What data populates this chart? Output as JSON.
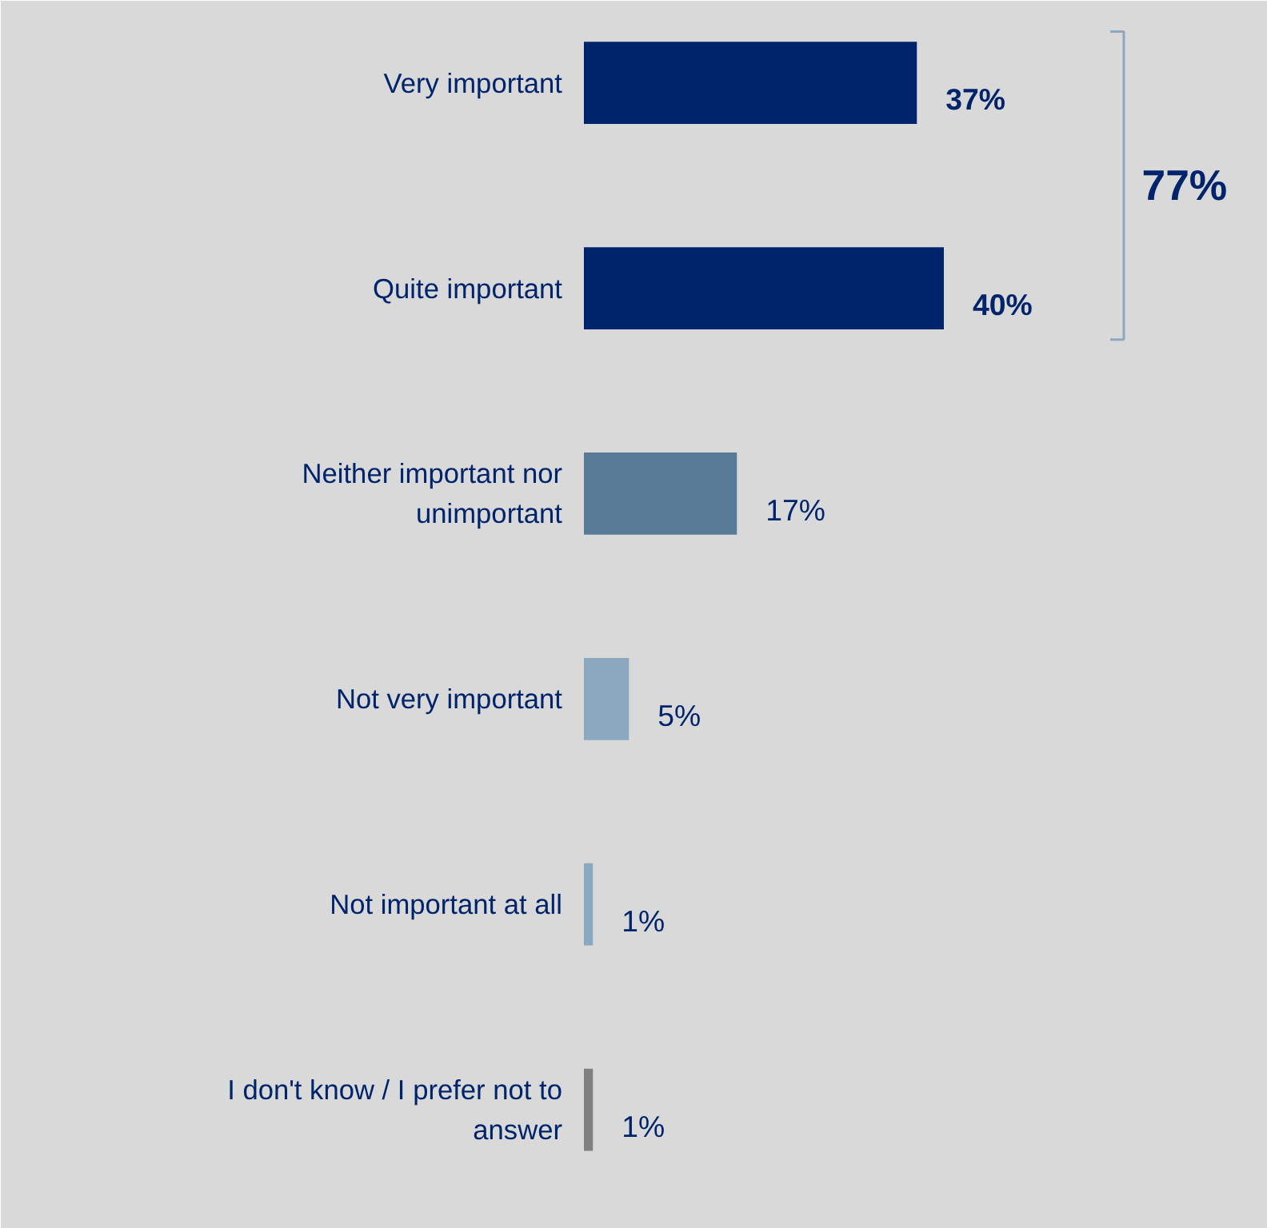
{
  "chart_data": {
    "type": "bar",
    "orientation": "horizontal",
    "categories": [
      "Very important",
      "Quite important",
      "Neither important nor unimportant",
      "Not very important",
      "Not important at all",
      "I don't know / I prefer not to answer"
    ],
    "values": [
      37,
      40,
      17,
      5,
      1,
      1
    ],
    "colors": [
      "#00246b",
      "#00246b",
      "#577b97",
      "#8aa8bf",
      "#8aa8bf",
      "#808080"
    ],
    "value_labels": [
      "37%",
      "40%",
      "17%",
      "5%",
      "1%",
      "1%"
    ],
    "annotations": [
      "77%"
    ],
    "grid": false
  }
}
